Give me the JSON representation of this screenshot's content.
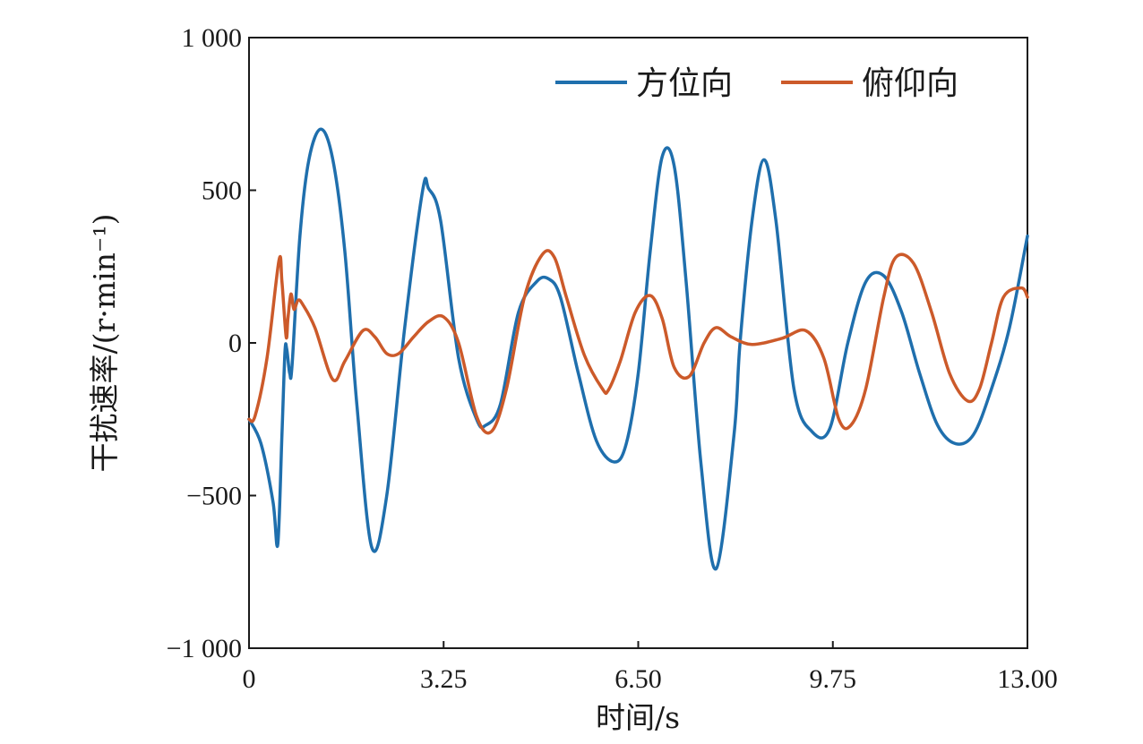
{
  "chart_data": {
    "type": "line",
    "xlabel": "时间/s",
    "ylabel": "干扰速率/(r·min⁻¹)",
    "xlim": [
      0,
      13
    ],
    "ylim": [
      -1000,
      1000
    ],
    "xticks": [
      0,
      3.25,
      6.5,
      9.75,
      13
    ],
    "xtick_labels": [
      "0",
      "3.25",
      "6.50",
      "9.75",
      "13.00"
    ],
    "yticks": [
      -1000,
      -500,
      0,
      500,
      1000
    ],
    "ytick_labels": [
      "−1 000",
      "−500",
      "0",
      "500",
      "1 000"
    ],
    "grid": false,
    "legend_position": "top-right",
    "series": [
      {
        "name": "方位向",
        "color": "#1f6fad",
        "x": [
          0,
          0.2,
          0.4,
          0.48,
          0.55,
          0.6,
          0.63,
          0.68,
          0.72,
          0.85,
          1.0,
          1.2,
          1.4,
          1.6,
          1.8,
          2.05,
          2.3,
          2.6,
          2.9,
          3.0,
          3.2,
          3.5,
          3.8,
          3.95,
          4.2,
          4.5,
          4.8,
          5.0,
          5.2,
          5.5,
          5.8,
          6.1,
          6.3,
          6.5,
          6.7,
          6.9,
          7.1,
          7.3,
          7.55,
          7.8,
          8.1,
          8.2,
          8.4,
          8.6,
          8.8,
          9.1,
          9.4,
          9.7,
          10.0,
          10.3,
          10.6,
          10.9,
          11.2,
          11.5,
          11.8,
          12.1,
          12.4,
          12.7,
          13.0
        ],
        "y": [
          -250,
          -330,
          -520,
          -660,
          -300,
          -30,
          -20,
          -100,
          -70,
          350,
          600,
          700,
          600,
          300,
          -200,
          -670,
          -500,
          50,
          500,
          505,
          400,
          -50,
          -250,
          -270,
          -200,
          100,
          200,
          210,
          150,
          -100,
          -320,
          -390,
          -330,
          -100,
          300,
          610,
          580,
          200,
          -400,
          -740,
          -300,
          0,
          400,
          600,
          400,
          -150,
          -290,
          -280,
          0,
          200,
          220,
          100,
          -100,
          -270,
          -330,
          -300,
          -150,
          50,
          350
        ]
      },
      {
        "name": "俯仰向",
        "color": "#cc5a2a",
        "x": [
          0,
          0.1,
          0.3,
          0.5,
          0.55,
          0.62,
          0.65,
          0.7,
          0.75,
          0.82,
          0.9,
          1.1,
          1.4,
          1.6,
          1.9,
          2.1,
          2.3,
          2.5,
          2.75,
          3.0,
          3.25,
          3.5,
          3.8,
          4.05,
          4.3,
          4.6,
          4.9,
          5.1,
          5.3,
          5.6,
          5.9,
          6.0,
          6.2,
          6.45,
          6.7,
          6.9,
          7.1,
          7.35,
          7.6,
          7.8,
          8.05,
          8.4,
          8.9,
          9.3,
          9.6,
          9.85,
          10.05,
          10.3,
          10.6,
          10.8,
          11.1,
          11.4,
          11.7,
          12.0,
          12.2,
          12.4,
          12.6,
          12.9,
          13.0
        ],
        "y": [
          -250,
          -240,
          -50,
          270,
          200,
          20,
          80,
          160,
          110,
          140,
          125,
          50,
          -120,
          -60,
          40,
          20,
          -35,
          -35,
          20,
          70,
          85,
          0,
          -240,
          -290,
          -150,
          150,
          290,
          280,
          150,
          -40,
          -150,
          -155,
          -60,
          100,
          155,
          80,
          -80,
          -110,
          0,
          50,
          20,
          -5,
          15,
          40,
          -50,
          -250,
          -270,
          -150,
          150,
          280,
          260,
          100,
          -100,
          -190,
          -150,
          0,
          150,
          180,
          150
        ]
      }
    ]
  }
}
